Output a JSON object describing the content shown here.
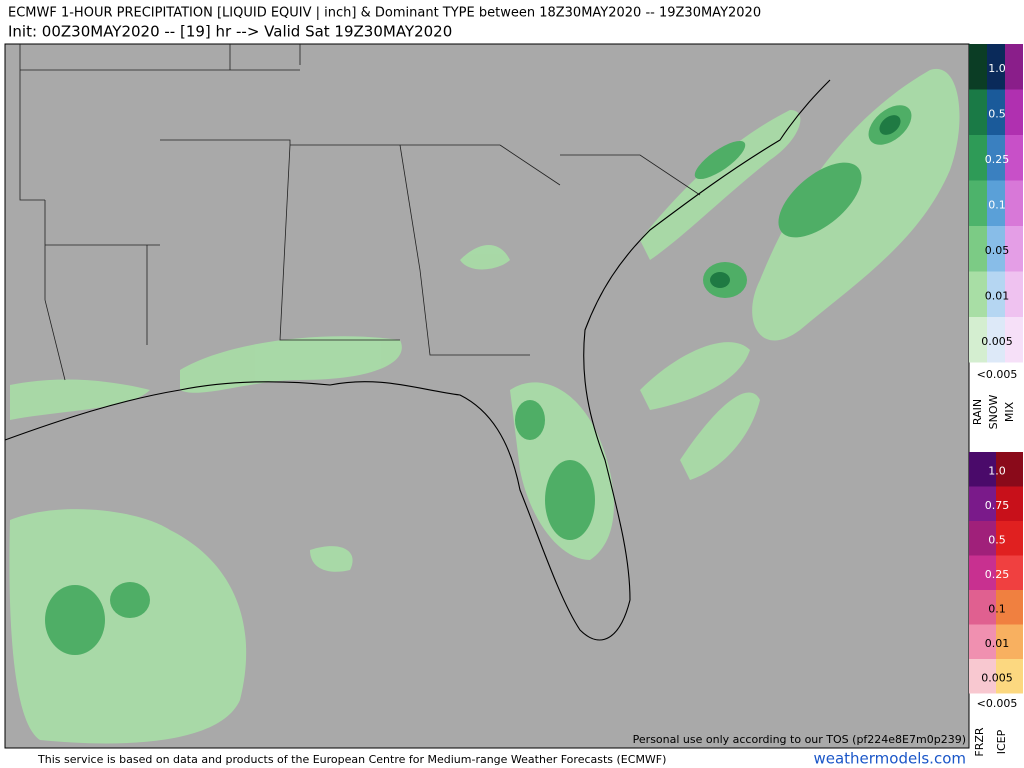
{
  "header": {
    "title": "ECMWF 1-HOUR PRECIPITATION [LIQUID EQUIV | inch] & Dominant TYPE between 18Z30MAY2020 -- 19Z30MAY2020",
    "subtitle": "Init: 00Z30MAY2020 -- [19] hr --> Valid Sat 19Z30MAY2020"
  },
  "legend": {
    "rain_snow_mix": {
      "levels": [
        "1.0",
        "0.5",
        "0.25",
        "0.1",
        "0.05",
        "0.01",
        "0.005"
      ],
      "below": "<0.005",
      "labels": [
        "RAIN",
        "SNOW",
        "MIX"
      ]
    },
    "frzr_icep": {
      "levels": [
        "1.0",
        "0.75",
        "0.5",
        "0.25",
        "0.1",
        "0.01",
        "0.005"
      ],
      "below": "<0.005",
      "labels": [
        "FRZR",
        "ICEP"
      ]
    }
  },
  "map": {
    "tos_note": "Personal use only according to our TOS (pf224e8E7m0p239)"
  },
  "footer": {
    "disclaimer": "This service is based on data and products of the European Centre for Medium-range Weather Forecasts (ECMWF)",
    "site": "weathermodels.com"
  }
}
